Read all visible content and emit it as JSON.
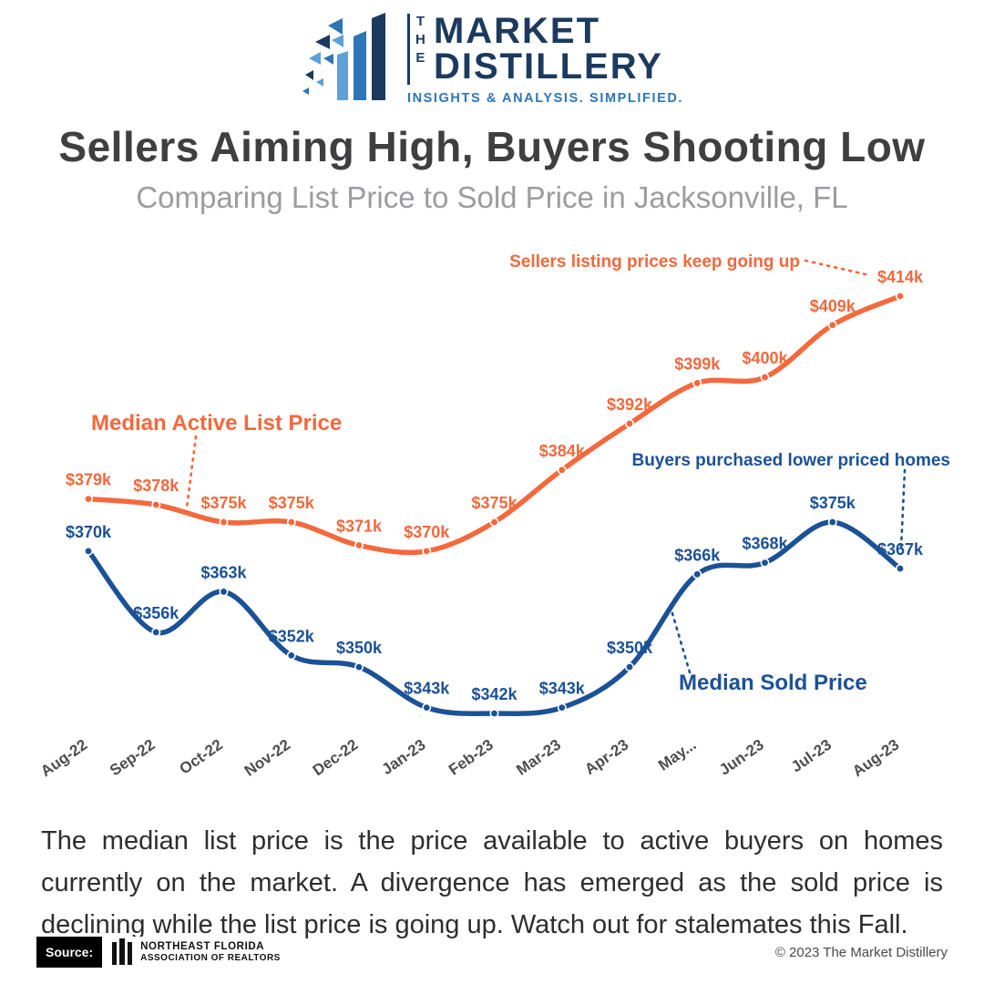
{
  "logo": {
    "the": "THE",
    "word1": "MARKET",
    "word2": "DISTILLERY",
    "tagline": "INSIGHTS & ANALYSIS. SIMPLIFIED."
  },
  "header": {
    "title": "Sellers Aiming High, Buyers Shooting Low",
    "subtitle": "Comparing List Price to Sold Price in Jacksonville, FL"
  },
  "annotations": {
    "sellers": "Sellers listing prices keep going up",
    "buyers": "Buyers purchased lower priced homes",
    "list_label": "Median Active List Price",
    "sold_label": "Median Sold Price"
  },
  "chart_data": {
    "type": "line",
    "categories": [
      "Aug-22",
      "Sep-22",
      "Oct-22",
      "Nov-22",
      "Dec-22",
      "Jan-23",
      "Feb-23",
      "Mar-23",
      "Apr-23",
      "May...",
      "Jun-23",
      "Jul-23",
      "Aug-23"
    ],
    "series": [
      {
        "name": "Median Active List Price",
        "color": "#F4683C",
        "values": [
          379,
          378,
          375,
          375,
          371,
          370,
          375,
          384,
          392,
          399,
          400,
          409,
          414
        ],
        "labels": [
          "$379k",
          "$378k",
          "$375k",
          "$375k",
          "$371k",
          "$370k",
          "$375k",
          "$384k",
          "$392k",
          "$399k",
          "$400k",
          "$409k",
          "$414k"
        ]
      },
      {
        "name": "Median Sold Price",
        "color": "#1B5196",
        "values": [
          370,
          356,
          363,
          352,
          350,
          343,
          342,
          343,
          350,
          366,
          368,
          375,
          367
        ],
        "labels": [
          "$370k",
          "$356k",
          "$363k",
          "$352k",
          "$350k",
          "$343k",
          "$342k",
          "$343k",
          "$350k",
          "$366k",
          "$368k",
          "$375k",
          "$367k"
        ]
      }
    ],
    "ylim": [
      338,
      424
    ],
    "grid": false,
    "legend_position": "inline-annotations",
    "unit": "USD thousands"
  },
  "body_text": "The median list price is the price available to active buyers on homes currently on the market. A divergence has emerged as the sold price is declining while the list price is going up. Watch out for stalemates this Fall.",
  "footer": {
    "source_label": "Source:",
    "source_org_line1": "NORTHEAST FLORIDA",
    "source_org_line2": "ASSOCIATION OF REALTORS",
    "copyright": "© 2023 The Market Distillery"
  },
  "colors": {
    "orange": "#F4683C",
    "blue": "#1B5196",
    "navy": "#1B3A5E",
    "tagline_blue": "#2E75B6",
    "title_gray": "#3F3F41",
    "subtitle_gray": "#9B9BA1"
  }
}
